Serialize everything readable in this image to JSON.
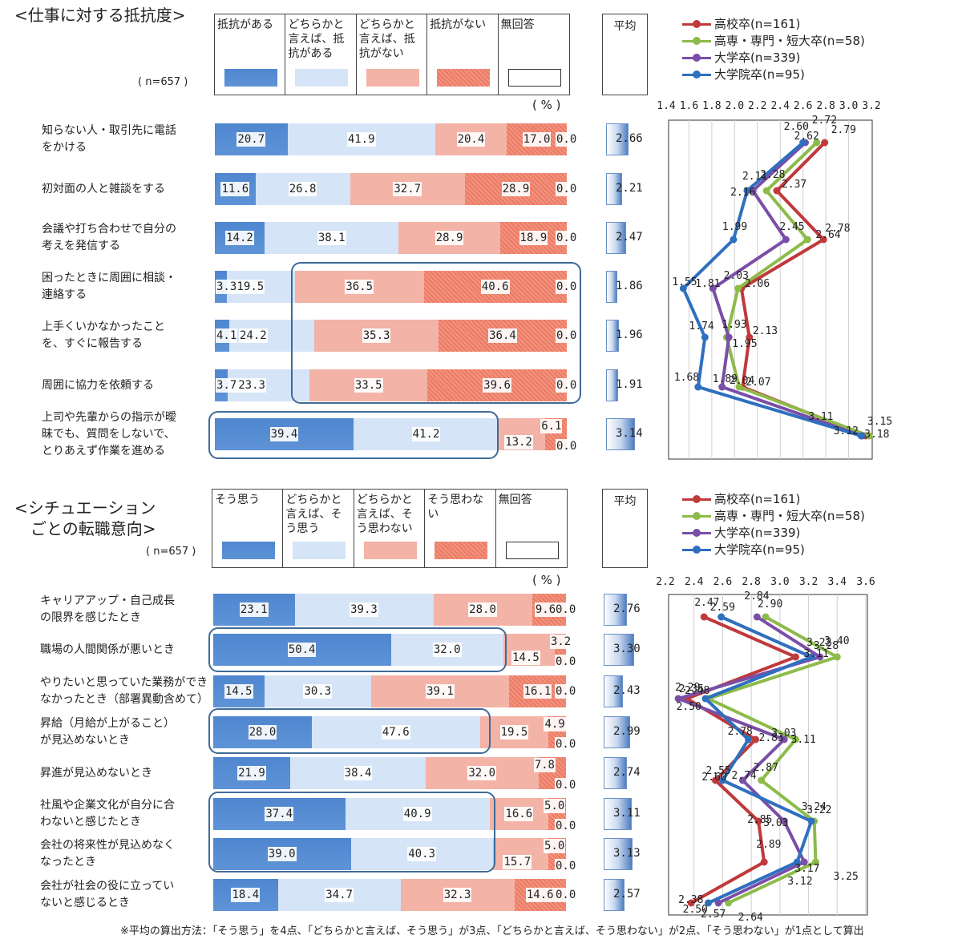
{
  "top": {
    "title": "<仕事に対する抵抗度>",
    "n_label": "( n=657 )",
    "legend": [
      "抵抗がある",
      "どちらかと言えば、抵抗がある",
      "どちらかと言えば、抵抗がない",
      "抵抗がない",
      "無回答"
    ],
    "legend_lines": [
      [
        "抵抗がある"
      ],
      [
        "どちらかと",
        "言えば、抵",
        "抗がある"
      ],
      [
        "どちらかと",
        "言えば、抵",
        "抗がない"
      ],
      [
        "抵抗がない"
      ],
      [
        "無回答"
      ]
    ],
    "avg_header": "平均",
    "pct_unit": "( % )",
    "rows": [
      {
        "label": [
          "知らない人・取引先に電話",
          "をかける"
        ],
        "values": [
          20.7,
          41.9,
          20.4,
          17.0,
          0.0
        ],
        "avg": "2.66"
      },
      {
        "label": [
          "初対面の人と雑談をする"
        ],
        "values": [
          11.6,
          26.8,
          32.7,
          28.9,
          0.0
        ],
        "avg": "2.21"
      },
      {
        "label": [
          "会議や打ち合わせで自分の",
          "考えを発信する"
        ],
        "values": [
          14.2,
          38.1,
          28.9,
          18.9,
          0.0
        ],
        "avg": "2.47"
      },
      {
        "label": [
          "困ったときに周囲に相談・",
          "連絡する"
        ],
        "values": [
          3.3,
          19.5,
          36.5,
          40.6,
          0.0
        ],
        "avg": "1.86"
      },
      {
        "label": [
          "上手くいかなかったこと",
          "を、すぐに報告する"
        ],
        "values": [
          4.1,
          24.2,
          35.3,
          36.4,
          0.0
        ],
        "avg": "1.96"
      },
      {
        "label": [
          "周囲に協力を依頼する"
        ],
        "values": [
          3.7,
          23.3,
          33.5,
          39.6,
          0.0
        ],
        "avg": "1.91"
      },
      {
        "label": [
          "上司や先輩からの指示が曖",
          "昧でも、質問をしないで、",
          "とりあえず作業を進める"
        ],
        "values": [
          39.4,
          41.2,
          13.2,
          6.1,
          0.0
        ],
        "avg": "3.14"
      }
    ]
  },
  "bottom": {
    "title": "<シチュエーション\n　ごとの転職意向>",
    "n_label": "( n=657 )",
    "legend": [
      "そう思う",
      "どちらかと言えば、そう思う",
      "どちらかと言えば、そう思わない",
      "そう思わない",
      "無回答"
    ],
    "legend_lines": [
      [
        "そう思う"
      ],
      [
        "どちらかと",
        "言えば、そ",
        "う思う"
      ],
      [
        "どちらかと",
        "言えば、そ",
        "う思わない"
      ],
      [
        "そう思わな",
        "い"
      ],
      [
        "無回答"
      ]
    ],
    "avg_header": "平均",
    "pct_unit": "( % )",
    "rows": [
      {
        "label": [
          "キャリアアップ・自己成長",
          "の限界を感じたとき"
        ],
        "values": [
          23.1,
          39.3,
          28.0,
          9.6,
          0.0
        ],
        "avg": "2.76"
      },
      {
        "label": [
          "職場の人間関係が悪いとき"
        ],
        "values": [
          50.4,
          32.0,
          14.5,
          3.2,
          0.0
        ],
        "avg": "3.30"
      },
      {
        "label": [
          "やりたいと思っていた業務ができ",
          "なかったとき（部署異動含めて）"
        ],
        "values": [
          14.5,
          30.3,
          39.1,
          16.1,
          0.0
        ],
        "avg": "2.43"
      },
      {
        "label": [
          "昇給（月給が上がること）",
          "が見込めないとき"
        ],
        "values": [
          28.0,
          47.6,
          19.5,
          4.9,
          0.0
        ],
        "avg": "2.99"
      },
      {
        "label": [
          "昇進が見込めないとき"
        ],
        "values": [
          21.9,
          38.4,
          32.0,
          7.8,
          0.0
        ],
        "avg": "2.74"
      },
      {
        "label": [
          "社風や企業文化が自分に合",
          "わないと感じたとき"
        ],
        "values": [
          37.4,
          40.9,
          16.6,
          5.0,
          0.0
        ],
        "avg": "3.11"
      },
      {
        "label": [
          "会社の将来性が見込めなく",
          "なったとき"
        ],
        "values": [
          39.0,
          40.3,
          15.7,
          5.0,
          0.0
        ],
        "avg": "3.13"
      },
      {
        "label": [
          "会社が社会の役に立ってい",
          "ないと感じるとき"
        ],
        "values": [
          18.4,
          34.7,
          32.3,
          14.6,
          0.0
        ],
        "avg": "2.57"
      }
    ]
  },
  "footnote": "※平均の算出方法：「そう思う」を4点、「どちらかと言えば、そう思う」が3点、「どちらかと言えば、そう思わない」が2点、「そう思わない」が1点として算出",
  "colors": {
    "seg1": "#5b8fd4",
    "seg2": "#d6e4f7",
    "seg3": "#f3b3a6",
    "seg4": "#ec7b64",
    "highlight": "#3f6a99"
  },
  "chart_data": [
    {
      "type": "bar",
      "stacked": true,
      "orientation": "horizontal",
      "title": "<仕事に対する抵抗度>",
      "categories": [
        "知らない人・取引先に電話をかける",
        "初対面の人と雑談をする",
        "会議や打ち合わせで自分の考えを発信する",
        "困ったときに周囲に相談・連絡する",
        "上手くいかなかったことを、すぐに報告する",
        "周囲に協力を依頼する",
        "上司や先輩からの指示が曖昧でも、質問をしないで、とりあえず作業を進める"
      ],
      "series": [
        {
          "name": "抵抗がある",
          "values": [
            20.7,
            11.6,
            14.2,
            3.3,
            4.1,
            3.7,
            39.4
          ]
        },
        {
          "name": "どちらかと言えば、抵抗がある",
          "values": [
            41.9,
            26.8,
            38.1,
            19.5,
            24.2,
            23.3,
            41.2
          ]
        },
        {
          "name": "どちらかと言えば、抵抗がない",
          "values": [
            20.4,
            32.7,
            28.9,
            36.5,
            35.3,
            33.5,
            13.2
          ]
        },
        {
          "name": "抵抗がない",
          "values": [
            17.0,
            28.9,
            18.9,
            40.6,
            36.4,
            39.6,
            6.1
          ]
        },
        {
          "name": "無回答",
          "values": [
            0.0,
            0.0,
            0.0,
            0.0,
            0.0,
            0.0,
            0.0
          ]
        }
      ],
      "xlim": [
        0,
        100
      ]
    },
    {
      "type": "bar",
      "orientation": "horizontal",
      "title": "平均",
      "categories": [
        "知らない人・取引先に電話をかける",
        "初対面の人と雑談をする",
        "会議や打ち合わせで自分の考えを発信する",
        "困ったときに周囲に相談・連絡する",
        "上手くいかなかったことを、すぐに報告する",
        "周囲に協力を依頼する",
        "上司や先輩からの指示が曖昧でも、質問をしないで、とりあえず作業を進める"
      ],
      "values": [
        2.66,
        2.21,
        2.47,
        1.86,
        1.96,
        1.91,
        3.14
      ]
    },
    {
      "type": "line",
      "orientation": "vertical-profile",
      "categories": [
        "知らない人・取引先に電話をかける",
        "初対面の人と雑談をする",
        "会議や打ち合わせで自分の考えを発信する",
        "困ったときに周囲に相談・連絡する",
        "上手くいかなかったことを、すぐに報告する",
        "周囲に協力を依頼する",
        "上司や先輩からの指示が曖昧でも、質問をしないで、とりあえず作業を進める"
      ],
      "ticks": [
        "1.4",
        "1.6",
        "1.8",
        "2.0",
        "2.2",
        "2.4",
        "2.6",
        "2.8",
        "3.0",
        "3.2"
      ],
      "xlim": [
        1.4,
        3.2
      ],
      "grid": true,
      "legend": "top-right",
      "series": [
        {
          "name": "高校卒(n=161)",
          "color": "#c0393b",
          "values": [
            2.79,
            2.37,
            2.78,
            2.06,
            2.13,
            2.07,
            3.15
          ]
        },
        {
          "name": "高専・専門・短大卒(n=58)",
          "color": "#8dbb4a",
          "values": [
            2.72,
            2.28,
            2.64,
            2.03,
            1.93,
            2.04,
            3.18
          ]
        },
        {
          "name": "大学卒(n=339)",
          "color": "#7a4ea8",
          "values": [
            2.62,
            2.16,
            2.45,
            1.81,
            1.95,
            1.89,
            3.12
          ]
        },
        {
          "name": "大学院卒(n=95)",
          "color": "#2f6fbf",
          "values": [
            2.6,
            2.11,
            1.99,
            1.55,
            1.74,
            1.68,
            3.11
          ]
        }
      ]
    },
    {
      "type": "bar",
      "stacked": true,
      "orientation": "horizontal",
      "title": "<シチュエーションごとの転職意向>",
      "categories": [
        "キャリアアップ・自己成長の限界を感じたとき",
        "職場の人間関係が悪いとき",
        "やりたいと思っていた業務ができなかったとき（部署異動含めて）",
        "昇給（月給が上がること）が見込めないとき",
        "昇進が見込めないとき",
        "社風や企業文化が自分に合わないと感じたとき",
        "会社の将来性が見込めなくなったとき",
        "会社が社会の役に立っていないと感じるとき"
      ],
      "series": [
        {
          "name": "そう思う",
          "values": [
            23.1,
            50.4,
            14.5,
            28.0,
            21.9,
            37.4,
            39.0,
            18.4
          ]
        },
        {
          "name": "どちらかと言えば、そう思う",
          "values": [
            39.3,
            32.0,
            30.3,
            47.6,
            38.4,
            40.9,
            40.3,
            34.7
          ]
        },
        {
          "name": "どちらかと言えば、そう思わない",
          "values": [
            28.0,
            14.5,
            39.1,
            19.5,
            32.0,
            16.6,
            15.7,
            32.3
          ]
        },
        {
          "name": "そう思わない",
          "values": [
            9.6,
            3.2,
            16.1,
            4.9,
            7.8,
            5.0,
            5.0,
            14.6
          ]
        },
        {
          "name": "無回答",
          "values": [
            0.0,
            0.0,
            0.0,
            0.0,
            0.0,
            0.0,
            0.0,
            0.0
          ]
        }
      ],
      "xlim": [
        0,
        100
      ]
    },
    {
      "type": "bar",
      "orientation": "horizontal",
      "title": "平均",
      "categories": [
        "キャリアアップ・自己成長の限界を感じたとき",
        "職場の人間関係が悪いとき",
        "やりたいと思っていた業務ができなかったとき（部署異動含めて）",
        "昇給（月給が上がること）が見込めないとき",
        "昇進が見込めないとき",
        "社風や企業文化が自分に合わないと感じたとき",
        "会社の将来性が見込めなくなったとき",
        "会社が社会の役に立っていないと感じるとき"
      ],
      "values": [
        2.76,
        3.3,
        2.43,
        2.99,
        2.74,
        3.11,
        3.13,
        2.57
      ]
    },
    {
      "type": "line",
      "orientation": "vertical-profile",
      "categories": [
        "キャリアアップ・自己成長の限界を感じたとき",
        "職場の人間関係が悪いとき",
        "やりたいと思っていた業務ができなかったとき（部署異動含めて）",
        "昇給（月給が上がること）が見込めないとき",
        "昇進が見込めないとき",
        "社風や企業文化が自分に合わないと感じたとき",
        "会社の将来性が見込めなくなったとき",
        "会社が社会の役に立っていないと感じるとき"
      ],
      "ticks": [
        "2.2",
        "2.4",
        "2.6",
        "2.8",
        "3.0",
        "3.2",
        "3.4",
        "3.6"
      ],
      "xlim": [
        2.2,
        3.6
      ],
      "grid": true,
      "legend": "top-right",
      "series": [
        {
          "name": "高校卒(n=161)",
          "color": "#c0393b",
          "values": [
            2.47,
            3.11,
            2.35,
            2.83,
            2.55,
            2.85,
            2.89,
            2.38
          ]
        },
        {
          "name": "高専・専門・短大卒(n=58)",
          "color": "#8dbb4a",
          "values": [
            2.9,
            3.4,
            2.5,
            3.11,
            2.87,
            3.24,
            3.25,
            2.64
          ]
        },
        {
          "name": "大学卒(n=339)",
          "color": "#7a4ea8",
          "values": [
            2.84,
            3.28,
            2.29,
            3.03,
            2.74,
            3.03,
            3.17,
            2.57
          ]
        },
        {
          "name": "大学院卒(n=95)",
          "color": "#2f6fbf",
          "values": [
            2.59,
            3.22,
            2.48,
            2.78,
            2.6,
            3.22,
            3.12,
            2.5
          ]
        }
      ]
    }
  ]
}
